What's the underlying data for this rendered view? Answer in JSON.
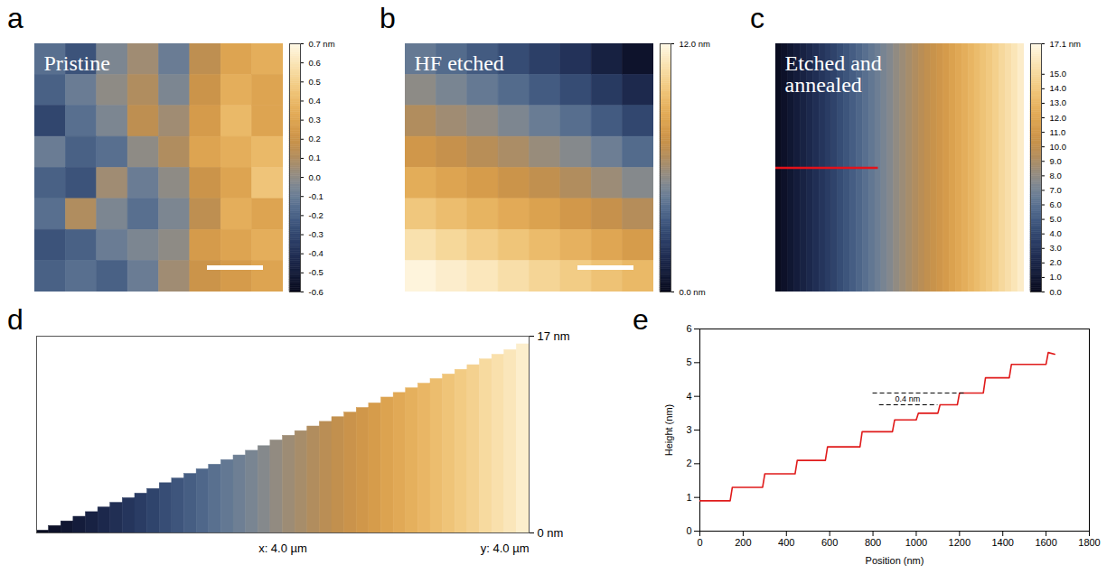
{
  "chart_data": [
    {
      "panel": "a",
      "type": "heatmap",
      "title": "Pristine",
      "values": [
        [
          -0.15,
          -0.25,
          -0.05,
          0.05,
          -0.1,
          0.15,
          0.3,
          0.35
        ],
        [
          -0.2,
          -0.1,
          0.0,
          0.1,
          -0.05,
          0.2,
          0.35,
          0.3
        ],
        [
          -0.3,
          -0.15,
          -0.05,
          0.15,
          0.05,
          0.25,
          0.4,
          0.3
        ],
        [
          -0.1,
          -0.2,
          -0.15,
          0.0,
          0.1,
          0.3,
          0.35,
          0.4
        ],
        [
          -0.2,
          -0.25,
          0.05,
          -0.1,
          0.0,
          0.2,
          0.3,
          0.45
        ],
        [
          -0.15,
          0.1,
          -0.05,
          -0.15,
          -0.05,
          0.15,
          0.35,
          0.3
        ],
        [
          -0.25,
          -0.2,
          -0.1,
          -0.05,
          0.0,
          0.25,
          0.3,
          0.35
        ],
        [
          -0.2,
          -0.15,
          -0.2,
          -0.1,
          0.05,
          0.2,
          0.25,
          0.3
        ]
      ],
      "tick_labels": false,
      "colorbar": {
        "range": [
          -0.6,
          0.7
        ],
        "ticks": [
          -0.6,
          -0.5,
          -0.4,
          -0.3,
          -0.2,
          -0.1,
          {
            "value": 0,
            "label": "0.0"
          },
          0.1,
          0.2,
          0.3,
          0.4,
          0.5,
          0.6,
          {
            "value": 0.7,
            "label": "0.7 nm"
          }
        ]
      }
    },
    {
      "panel": "b",
      "type": "heatmap",
      "title": "HF etched",
      "values": [
        [
          4.5,
          4.0,
          3.5,
          3.0,
          2.5,
          2.0,
          1.2,
          0.5
        ],
        [
          5.5,
          5.0,
          4.5,
          4.0,
          3.5,
          3.0,
          2.3,
          1.6
        ],
        [
          6.5,
          6.0,
          5.6,
          5.1,
          4.6,
          4.1,
          3.5,
          2.8
        ],
        [
          7.6,
          7.2,
          6.7,
          6.3,
          5.8,
          5.3,
          4.7,
          4.0
        ],
        [
          8.7,
          8.3,
          7.9,
          7.4,
          7.0,
          6.5,
          5.9,
          5.3
        ],
        [
          9.8,
          9.4,
          9.0,
          8.6,
          8.2,
          7.7,
          7.2,
          6.6
        ],
        [
          10.9,
          10.5,
          10.1,
          9.7,
          9.3,
          8.9,
          8.4,
          7.9
        ],
        [
          11.8,
          11.5,
          11.2,
          10.8,
          10.4,
          10.0,
          9.6,
          9.2
        ]
      ],
      "tick_labels": false,
      "colorbar": {
        "range": [
          0,
          12
        ],
        "ticks": [
          {
            "value": 0,
            "label": "0.0 nm"
          },
          {
            "value": 12,
            "label": "12.0 nm"
          }
        ]
      }
    },
    {
      "panel": "c",
      "type": "heatmap",
      "title": "Etched and annealed",
      "xlim": [
        0,
        4
      ],
      "ylim": [
        0,
        4
      ],
      "tick_labels": false,
      "values": [
        [
          0.2,
          0.6,
          1.0,
          1.4,
          1.8,
          2.2,
          2.6,
          3.0,
          3.4,
          3.8,
          4.3,
          4.7,
          5.1,
          5.5,
          5.9,
          6.3,
          6.7,
          7.1,
          7.5,
          8.0,
          8.4,
          8.8,
          9.2,
          9.6,
          10.0,
          10.4,
          10.8,
          11.2,
          11.7,
          12.1,
          12.5,
          12.9,
          13.3,
          13.7,
          14.1,
          14.5,
          15.0,
          15.4,
          15.8,
          16.3
        ]
      ],
      "profile_line": {
        "x": [
          0,
          1.65
        ],
        "y": 2.0,
        "color": "#e3121b"
      },
      "colorbar": {
        "range": [
          0,
          17.1
        ],
        "ticks": [
          {
            "value": 0,
            "label": "0.0"
          },
          {
            "value": 1,
            "label": "1.0"
          },
          {
            "value": 2,
            "label": "2.0"
          },
          {
            "value": 3,
            "label": "3.0"
          },
          {
            "value": 4,
            "label": "4.0"
          },
          {
            "value": 5,
            "label": "5.0"
          },
          {
            "value": 6,
            "label": "6.0"
          },
          {
            "value": 7,
            "label": "7.0"
          },
          {
            "value": 8,
            "label": "8.0"
          },
          {
            "value": 9,
            "label": "9.0"
          },
          {
            "value": 10,
            "label": "10.0"
          },
          {
            "value": 11,
            "label": "11.0"
          },
          {
            "value": 12,
            "label": "12.0"
          },
          {
            "value": 13,
            "label": "13.0"
          },
          {
            "value": 14,
            "label": "14.0"
          },
          {
            "value": 15,
            "label": "15.0"
          },
          {
            "value": 17.1,
            "label": "17.1 nm"
          }
        ]
      }
    },
    {
      "panel": "d",
      "type": "surface",
      "xlabel": "x: 4.0 µm",
      "ylabel": "y: 4.0 µm",
      "xlim": [
        0,
        4
      ],
      "x": [
        0,
        0.1,
        0.2,
        0.3,
        0.4,
        0.5,
        0.6,
        0.7,
        0.8,
        0.9,
        1.0,
        1.1,
        1.2,
        1.3,
        1.4,
        1.5,
        1.6,
        1.7,
        1.8,
        1.9,
        2.0,
        2.1,
        2.2,
        2.3,
        2.4,
        2.5,
        2.6,
        2.7,
        2.8,
        2.9,
        3.0,
        3.1,
        3.2,
        3.3,
        3.4,
        3.5,
        3.6,
        3.7,
        3.8,
        3.9
      ],
      "values": [
        0.2,
        0.6,
        1.0,
        1.4,
        1.8,
        2.2,
        2.6,
        3.0,
        3.4,
        3.8,
        4.3,
        4.7,
        5.1,
        5.5,
        5.9,
        6.3,
        6.7,
        7.1,
        7.5,
        8.0,
        8.4,
        8.8,
        9.2,
        9.6,
        10.0,
        10.4,
        10.8,
        11.2,
        11.7,
        12.1,
        12.5,
        12.9,
        13.3,
        13.7,
        14.1,
        14.5,
        15.0,
        15.4,
        15.8,
        16.3
      ],
      "zlim": [
        0,
        17
      ],
      "zticks": [
        {
          "value": 0,
          "label": "0 nm"
        },
        {
          "value": 17,
          "label": "17 nm"
        }
      ]
    },
    {
      "panel": "e",
      "type": "line",
      "xlabel": "Position (nm)",
      "ylabel": "Height (nm)",
      "xlim": [
        0,
        1800
      ],
      "xticks": [
        0,
        200,
        400,
        600,
        800,
        1000,
        1200,
        1400,
        1600,
        1800
      ],
      "ylim": [
        0,
        6
      ],
      "yticks": [
        0,
        1,
        2,
        3,
        4,
        5,
        6
      ],
      "color": "#e01b1b",
      "x": [
        0,
        140,
        150,
        290,
        300,
        440,
        450,
        580,
        590,
        740,
        750,
        890,
        900,
        1000,
        1010,
        1100,
        1110,
        1190,
        1200,
        1310,
        1320,
        1430,
        1440,
        1600,
        1610,
        1640
      ],
      "values": [
        0.9,
        0.9,
        1.3,
        1.3,
        1.7,
        1.7,
        2.1,
        2.1,
        2.5,
        2.5,
        2.95,
        2.95,
        3.3,
        3.3,
        3.5,
        3.5,
        3.75,
        3.75,
        4.1,
        4.1,
        4.55,
        4.55,
        4.95,
        4.95,
        5.3,
        5.25
      ],
      "dashed_lines": [
        {
          "y": 4.1,
          "x": [
            800,
            1230
          ]
        },
        {
          "y": 3.75,
          "x": [
            830,
            1100
          ]
        }
      ],
      "annotations": [
        {
          "text": "0.4 nm",
          "x": 960,
          "y": 3.93
        }
      ]
    }
  ]
}
